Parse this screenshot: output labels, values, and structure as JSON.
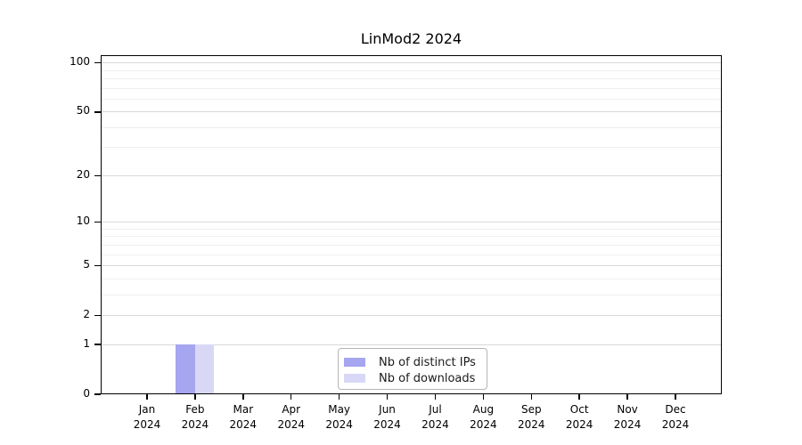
{
  "title": "LinMod2 2024",
  "chart_data": {
    "type": "bar",
    "title": "LinMod2 2024",
    "categories": [
      "Jan",
      "Feb",
      "Mar",
      "Apr",
      "May",
      "Jun",
      "Jul",
      "Aug",
      "Sep",
      "Oct",
      "Nov",
      "Dec"
    ],
    "x_year": "2024",
    "series": [
      {
        "name": "Nb of distinct IPs",
        "color": "#a5a5f0",
        "values": [
          0,
          1,
          0,
          0,
          0,
          0,
          0,
          0,
          0,
          0,
          0,
          0
        ]
      },
      {
        "name": "Nb of downloads",
        "color": "#d8d8f6",
        "values": [
          0,
          1,
          0,
          0,
          0,
          0,
          0,
          0,
          0,
          0,
          0,
          0
        ]
      }
    ],
    "y_scale": "log1p",
    "y_ticks": [
      0,
      1,
      2,
      5,
      10,
      20,
      50,
      100
    ],
    "y_minor_gridlines": [
      3,
      4,
      6,
      7,
      8,
      9,
      30,
      40,
      60,
      70,
      80,
      90
    ],
    "ylim": [
      0,
      112
    ],
    "grid": "horizontal",
    "legend_position": "lower center",
    "xlabel": "",
    "ylabel": ""
  }
}
